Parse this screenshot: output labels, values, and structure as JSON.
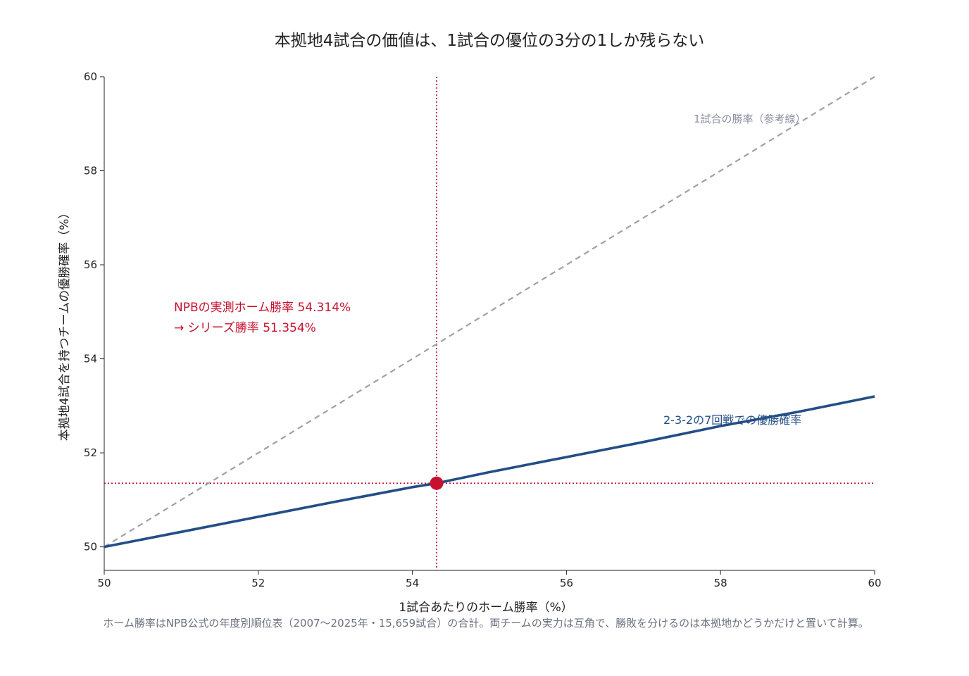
{
  "chart_data": {
    "type": "line",
    "title": "本拠地4試合の価値は、1試合の優位の3分の1しか残らない",
    "xlabel": "1試合あたりのホーム勝率（%）",
    "ylabel": "本拠地4試合を持つチームの優勝確率（%）",
    "xlim": [
      50,
      60
    ],
    "ylim": [
      49.5,
      60
    ],
    "x_ticks": [
      50,
      52,
      54,
      56,
      58,
      60
    ],
    "y_ticks": [
      50,
      52,
      54,
      56,
      58,
      60
    ],
    "grid": false,
    "series": [
      {
        "name": "1試合の勝率（参考線）",
        "style": "dashed",
        "color": "#9ca0b0",
        "x": [
          50,
          60
        ],
        "y": [
          50,
          60
        ]
      },
      {
        "name": "2-3-2の7回戦での優勝確率",
        "style": "solid",
        "color": "#234e86",
        "x": [
          50,
          51,
          52,
          53,
          54,
          54.314,
          55,
          56,
          57,
          58,
          59,
          60
        ],
        "y": [
          50,
          50.32,
          50.64,
          50.96,
          51.27,
          51.354,
          51.59,
          51.91,
          52.23,
          52.57,
          52.87,
          53.2
        ]
      }
    ],
    "highlight": {
      "x": 54.314,
      "y": 51.354,
      "color": "#c8102e",
      "label_line1": "NPBの実測ホーム勝率 54.314%",
      "label_line2": "→ シリーズ勝率 51.354%"
    },
    "footnote": "ホーム勝率はNPB公式の年度別順位表（2007〜2025年・15,659試合）の合計。両チームの実力は互角で、勝敗を分けるのは本拠地かどうかだけと置いて計算。"
  }
}
